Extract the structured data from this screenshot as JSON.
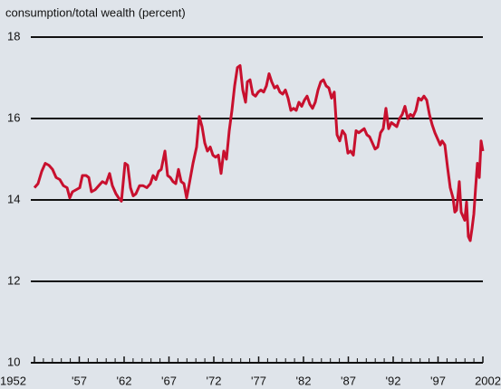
{
  "chart_data": {
    "type": "line",
    "title": "consumption/total wealth (percent)",
    "xlim": [
      1952,
      2002
    ],
    "xticks": [
      {
        "value": 1952,
        "label": "1952"
      },
      {
        "value": 1957,
        "label": "'57"
      },
      {
        "value": 1962,
        "label": "'62"
      },
      {
        "value": 1967,
        "label": "'67"
      },
      {
        "value": 1972,
        "label": "'72"
      },
      {
        "value": 1977,
        "label": "'77"
      },
      {
        "value": 1982,
        "label": "'82"
      },
      {
        "value": 1987,
        "label": "'87"
      },
      {
        "value": 1992,
        "label": "'92"
      },
      {
        "value": 1997,
        "label": "'97"
      },
      {
        "value": 2002,
        "label": "2002"
      }
    ],
    "ylim": [
      10,
      18
    ],
    "yticks": [
      10,
      12,
      14,
      16,
      18
    ],
    "grid": true,
    "x": [
      1952,
      1952.4,
      1952.81,
      1953.21,
      1953.62,
      1954.02,
      1954.42,
      1954.83,
      1955.23,
      1955.64,
      1955.94,
      1956.24,
      1956.65,
      1957.05,
      1957.35,
      1957.76,
      1958.06,
      1958.36,
      1958.77,
      1959.17,
      1959.58,
      1959.98,
      1960.38,
      1960.69,
      1961.09,
      1961.39,
      1961.7,
      1962.1,
      1962.4,
      1962.71,
      1963.01,
      1963.31,
      1963.72,
      1964.12,
      1964.53,
      1964.93,
      1965.23,
      1965.54,
      1965.84,
      1966.14,
      1966.55,
      1966.85,
      1967.15,
      1967.45,
      1967.76,
      1968.06,
      1968.36,
      1968.67,
      1968.97,
      1969.27,
      1969.68,
      1970.08,
      1970.38,
      1970.69,
      1970.99,
      1971.29,
      1971.6,
      1971.9,
      1972.2,
      1972.51,
      1972.81,
      1973.11,
      1973.41,
      1973.72,
      1974.02,
      1974.32,
      1974.63,
      1974.93,
      1975.23,
      1975.54,
      1975.74,
      1976.04,
      1976.34,
      1976.65,
      1976.95,
      1977.25,
      1977.56,
      1977.86,
      1978.16,
      1978.46,
      1978.77,
      1979.07,
      1979.37,
      1979.68,
      1979.98,
      1980.28,
      1980.59,
      1980.89,
      1981.19,
      1981.49,
      1981.8,
      1982.1,
      1982.4,
      1982.71,
      1983.01,
      1983.31,
      1983.62,
      1983.92,
      1984.22,
      1984.53,
      1984.83,
      1985.13,
      1985.43,
      1985.74,
      1986.04,
      1986.34,
      1986.65,
      1986.95,
      1987.25,
      1987.56,
      1987.86,
      1988.16,
      1988.46,
      1988.77,
      1989.07,
      1989.37,
      1989.68,
      1989.98,
      1990.28,
      1990.59,
      1990.89,
      1991.19,
      1991.49,
      1991.8,
      1992.1,
      1992.4,
      1992.71,
      1993.01,
      1993.31,
      1993.62,
      1993.92,
      1994.22,
      1994.53,
      1994.83,
      1995.13,
      1995.43,
      1995.74,
      1996.04,
      1996.34,
      1996.65,
      1996.95,
      1997.25,
      1997.45,
      1997.76,
      1998.06,
      1998.36,
      1998.67,
      1998.87,
      1999.07,
      1999.37,
      1999.58,
      1999.78,
      1999.98,
      2000.18,
      2000.38,
      2000.59,
      2000.79,
      2000.99,
      2001.19,
      2001.39,
      2001.6,
      2001.8,
      2002
    ],
    "series": [
      {
        "color": "#c8102e",
        "values": [
          14.3,
          14.4,
          14.7,
          14.9,
          14.85,
          14.75,
          14.55,
          14.5,
          14.35,
          14.3,
          14.05,
          14.2,
          14.25,
          14.3,
          14.6,
          14.6,
          14.55,
          14.2,
          14.25,
          14.35,
          14.45,
          14.4,
          14.65,
          14.35,
          14.15,
          14.05,
          13.97,
          14.9,
          14.85,
          14.3,
          14.1,
          14.15,
          14.35,
          14.35,
          14.3,
          14.4,
          14.6,
          14.5,
          14.7,
          14.75,
          15.2,
          14.6,
          14.55,
          14.45,
          14.4,
          14.75,
          14.45,
          14.4,
          14.05,
          14.4,
          14.9,
          15.3,
          16.05,
          15.8,
          15.4,
          15.2,
          15.3,
          15.1,
          15.05,
          15.1,
          14.65,
          15.2,
          15.0,
          15.7,
          16.2,
          16.8,
          17.25,
          17.3,
          16.7,
          16.4,
          16.9,
          16.95,
          16.6,
          16.55,
          16.65,
          16.7,
          16.65,
          16.8,
          17.1,
          16.9,
          16.75,
          16.8,
          16.65,
          16.6,
          16.7,
          16.5,
          16.2,
          16.25,
          16.2,
          16.4,
          16.3,
          16.45,
          16.55,
          16.35,
          16.25,
          16.4,
          16.7,
          16.9,
          16.95,
          16.8,
          16.75,
          16.5,
          16.65,
          15.6,
          15.45,
          15.7,
          15.6,
          15.15,
          15.2,
          15.1,
          15.7,
          15.65,
          15.7,
          15.75,
          15.6,
          15.55,
          15.4,
          15.25,
          15.3,
          15.65,
          15.75,
          16.25,
          15.75,
          15.9,
          15.85,
          15.8,
          16.0,
          16.1,
          16.3,
          16.0,
          16.1,
          16.05,
          16.2,
          16.5,
          16.45,
          16.55,
          16.45,
          16.1,
          15.85,
          15.65,
          15.5,
          15.35,
          15.45,
          15.35,
          14.8,
          14.3,
          14.05,
          13.7,
          13.75,
          14.45,
          13.7,
          13.6,
          13.5,
          13.95,
          13.1,
          13.0,
          13.3,
          13.65,
          14.3,
          14.9,
          14.55,
          15.45,
          15.2
        ]
      }
    ]
  }
}
